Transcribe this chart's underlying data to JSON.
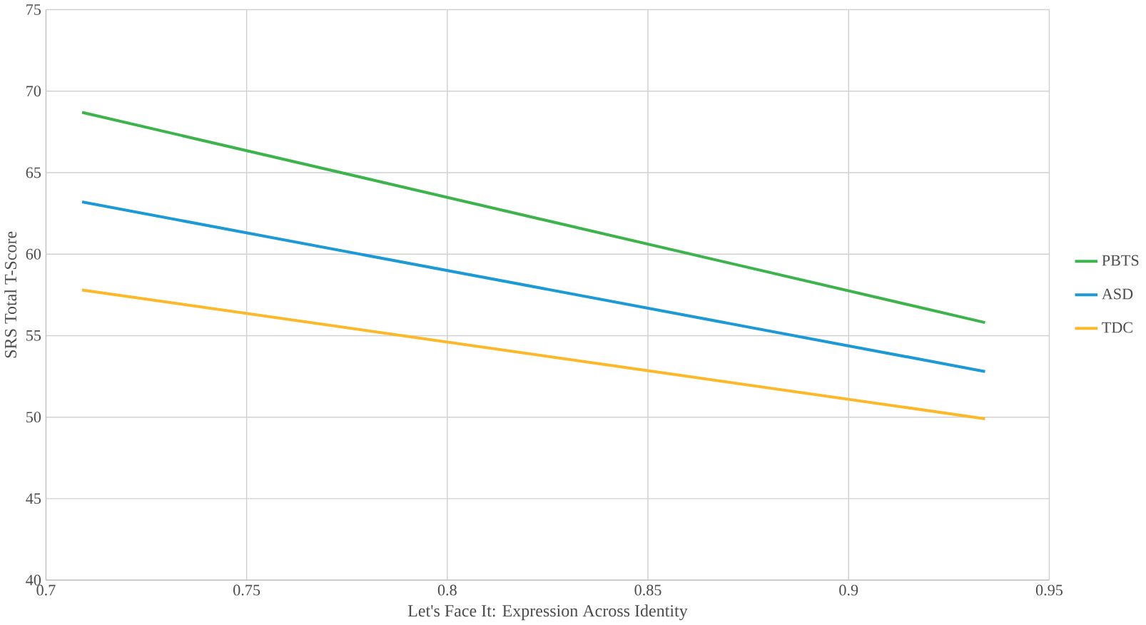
{
  "chart_data": {
    "type": "line",
    "xlabel": "Let's Face It: Expression Across Identity",
    "ylabel": "SRS Total T-Score",
    "x": [
      0.709,
      0.934
    ],
    "series": [
      {
        "name": "PBTS",
        "color": "#3cb44b",
        "values": [
          68.7,
          55.8
        ]
      },
      {
        "name": "ASD",
        "color": "#1b9ad6",
        "values": [
          63.2,
          52.8
        ]
      },
      {
        "name": "TDC",
        "color": "#fdb827",
        "values": [
          57.8,
          49.9
        ]
      }
    ],
    "xlim": [
      0.7,
      0.95
    ],
    "xticks": [
      0.7,
      0.75,
      0.8,
      0.85,
      0.9,
      0.95
    ],
    "ylim": [
      40,
      75
    ],
    "yticks": [
      40,
      45,
      50,
      55,
      60,
      65,
      70,
      75
    ],
    "grid": true,
    "legend": "right",
    "marker": "none",
    "line_style": "solid"
  }
}
